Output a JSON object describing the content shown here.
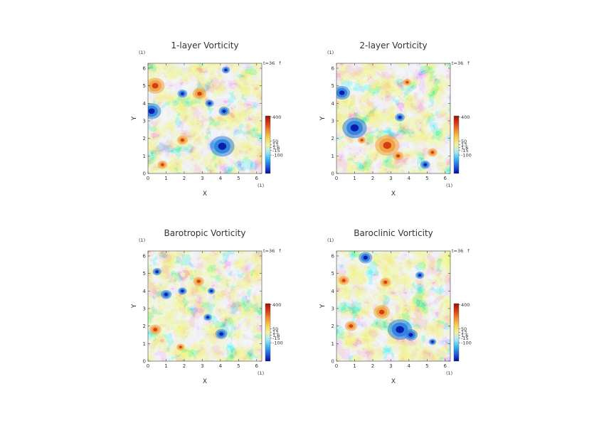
{
  "chart_data": [
    {
      "type": "heatmap",
      "title": "1-layer Vorticity",
      "xlabel": "X",
      "ylabel": "Y",
      "x_unit": "(1)",
      "y_unit": "(1)",
      "time_label": "t=36",
      "time_marker": "↑",
      "xlim": [
        0,
        6.2832
      ],
      "ylim": [
        0,
        6.2832
      ],
      "x_ticks": [
        "0",
        "1",
        "2",
        "3",
        "4",
        "5",
        "6"
      ],
      "y_ticks": [
        "0",
        "1",
        "2",
        "3",
        "4",
        "5",
        "6"
      ],
      "colorbar": {
        "ticks": [
          {
            "text": "400",
            "value": 400
          },
          {
            "text": "50",
            "value": 50
          },
          {
            "text": "13",
            "value": 13
          },
          {
            "text": "1.6",
            "value": 1.6
          },
          {
            "text": "-15",
            "value": -15
          },
          {
            "text": "-100",
            "value": -100
          }
        ]
      },
      "features": [
        {
          "kind": "pos",
          "x": 0.4,
          "y": 5.0,
          "r": 0.35
        },
        {
          "kind": "pos",
          "x": 2.85,
          "y": 4.55,
          "r": 0.25
        },
        {
          "kind": "neg",
          "x": 0.2,
          "y": 3.55,
          "r": 0.35
        },
        {
          "kind": "neg",
          "x": 4.1,
          "y": 1.55,
          "r": 0.45
        },
        {
          "kind": "neg",
          "x": 4.2,
          "y": 3.55,
          "r": 0.2
        },
        {
          "kind": "neg",
          "x": 1.9,
          "y": 4.55,
          "r": 0.18
        },
        {
          "kind": "neg",
          "x": 3.4,
          "y": 4.0,
          "r": 0.16
        },
        {
          "kind": "pos",
          "x": 1.9,
          "y": 1.9,
          "r": 0.2
        },
        {
          "kind": "pos",
          "x": 0.8,
          "y": 0.5,
          "r": 0.18
        },
        {
          "kind": "neg",
          "x": 4.3,
          "y": 5.9,
          "r": 0.15
        }
      ]
    },
    {
      "type": "heatmap",
      "title": "2-layer Vorticity",
      "xlabel": "X",
      "ylabel": "Y",
      "x_unit": "(1)",
      "y_unit": "(1)",
      "time_label": "t=36",
      "time_marker": "↑",
      "xlim": [
        0,
        6.2832
      ],
      "ylim": [
        0,
        6.2832
      ],
      "x_ticks": [
        "0",
        "1",
        "2",
        "3",
        "4",
        "5",
        "6"
      ],
      "y_ticks": [
        "0",
        "1",
        "2",
        "3",
        "4",
        "5",
        "6"
      ],
      "colorbar": {
        "ticks": [
          {
            "text": "400",
            "value": 400
          },
          {
            "text": "50",
            "value": 50
          },
          {
            "text": "13",
            "value": 13
          },
          {
            "text": "1.6",
            "value": 1.6
          },
          {
            "text": "-15",
            "value": -15
          },
          {
            "text": "-100",
            "value": -100
          }
        ]
      },
      "features": [
        {
          "kind": "neg",
          "x": 1.0,
          "y": 2.6,
          "r": 0.45
        },
        {
          "kind": "neg",
          "x": 0.3,
          "y": 4.6,
          "r": 0.3
        },
        {
          "kind": "pos",
          "x": 2.8,
          "y": 1.6,
          "r": 0.45
        },
        {
          "kind": "pos",
          "x": 3.4,
          "y": 1.0,
          "r": 0.2
        },
        {
          "kind": "neg",
          "x": 4.9,
          "y": 0.5,
          "r": 0.18
        },
        {
          "kind": "pos",
          "x": 5.3,
          "y": 1.2,
          "r": 0.18
        },
        {
          "kind": "pos",
          "x": 3.9,
          "y": 5.2,
          "r": 0.15
        },
        {
          "kind": "neg",
          "x": 3.5,
          "y": 3.2,
          "r": 0.18
        },
        {
          "kind": "pos",
          "x": 1.4,
          "y": 1.9,
          "r": 0.15
        }
      ]
    },
    {
      "type": "heatmap",
      "title": "Barotropic Vorticity",
      "xlabel": "X",
      "ylabel": "Y",
      "x_unit": "(1)",
      "y_unit": "(1)",
      "time_label": "t=36",
      "time_marker": "↑",
      "xlim": [
        0,
        6.2832
      ],
      "ylim": [
        0,
        6.2832
      ],
      "x_ticks": [
        "0",
        "1",
        "2",
        "3",
        "4",
        "5",
        "6"
      ],
      "y_ticks": [
        "0",
        "1",
        "2",
        "3",
        "4",
        "5",
        "6"
      ],
      "colorbar": {
        "ticks": [
          {
            "text": "400",
            "value": 400
          },
          {
            "text": "50",
            "value": 50
          },
          {
            "text": "13",
            "value": 13
          },
          {
            "text": "1.6",
            "value": 1.6
          },
          {
            "text": "-15",
            "value": -15
          },
          {
            "text": "-100",
            "value": -100
          }
        ]
      },
      "features": [
        {
          "kind": "pos",
          "x": 2.8,
          "y": 4.55,
          "r": 0.2
        },
        {
          "kind": "neg",
          "x": 4.05,
          "y": 1.55,
          "r": 0.22
        },
        {
          "kind": "neg",
          "x": 1.0,
          "y": 3.8,
          "r": 0.2
        },
        {
          "kind": "neg",
          "x": 1.9,
          "y": 4.0,
          "r": 0.16
        },
        {
          "kind": "pos",
          "x": 0.4,
          "y": 1.8,
          "r": 0.22
        },
        {
          "kind": "neg",
          "x": 3.3,
          "y": 2.5,
          "r": 0.15
        },
        {
          "kind": "neg",
          "x": 0.5,
          "y": 5.1,
          "r": 0.16
        },
        {
          "kind": "pos",
          "x": 1.8,
          "y": 0.8,
          "r": 0.15
        },
        {
          "kind": "neg",
          "x": 3.5,
          "y": 4.0,
          "r": 0.14
        }
      ]
    },
    {
      "type": "heatmap",
      "title": "Baroclinic Vorticity",
      "xlabel": "X",
      "ylabel": "Y",
      "x_unit": "(1)",
      "y_unit": "(1)",
      "time_label": "t=36",
      "time_marker": "↑",
      "xlim": [
        0,
        6.2832
      ],
      "ylim": [
        0,
        6.2832
      ],
      "x_ticks": [
        "0",
        "1",
        "2",
        "3",
        "4",
        "5",
        "6"
      ],
      "y_ticks": [
        "0",
        "1",
        "2",
        "3",
        "4",
        "5",
        "6"
      ],
      "colorbar": {
        "ticks": [
          {
            "text": "400",
            "value": 400
          },
          {
            "text": "50",
            "value": 50
          },
          {
            "text": "13",
            "value": 13
          },
          {
            "text": "1.6",
            "value": 1.6
          },
          {
            "text": "-15",
            "value": -15
          },
          {
            "text": "-100",
            "value": -100
          }
        ]
      },
      "features": [
        {
          "kind": "neg",
          "x": 3.5,
          "y": 1.8,
          "r": 0.45
        },
        {
          "kind": "neg",
          "x": 4.1,
          "y": 1.5,
          "r": 0.25
        },
        {
          "kind": "pos",
          "x": 2.7,
          "y": 4.5,
          "r": 0.2
        },
        {
          "kind": "pos",
          "x": 2.5,
          "y": 2.8,
          "r": 0.3
        },
        {
          "kind": "pos",
          "x": 0.8,
          "y": 2.0,
          "r": 0.22
        },
        {
          "kind": "neg",
          "x": 1.6,
          "y": 5.9,
          "r": 0.25
        },
        {
          "kind": "neg",
          "x": 4.6,
          "y": 4.9,
          "r": 0.16
        },
        {
          "kind": "pos",
          "x": 0.4,
          "y": 4.6,
          "r": 0.2
        },
        {
          "kind": "neg",
          "x": 5.3,
          "y": 1.1,
          "r": 0.14
        }
      ]
    }
  ],
  "colors": {
    "strong_neg": "#0a18a8",
    "neg": "#2a7fe0",
    "weak_neg": "#8fd3f2",
    "neutral": "#f7f7d6",
    "weak_pos": "#f5e070",
    "pos": "#f2a040",
    "strong_pos": "#d23a10",
    "colorbar_stops": [
      "#0a0a9a",
      "#1f5fe0",
      "#39b8f0",
      "#a8e8f4",
      "#f4f0a0",
      "#f5d050",
      "#f08a30",
      "#d83a14",
      "#9a1208"
    ]
  }
}
